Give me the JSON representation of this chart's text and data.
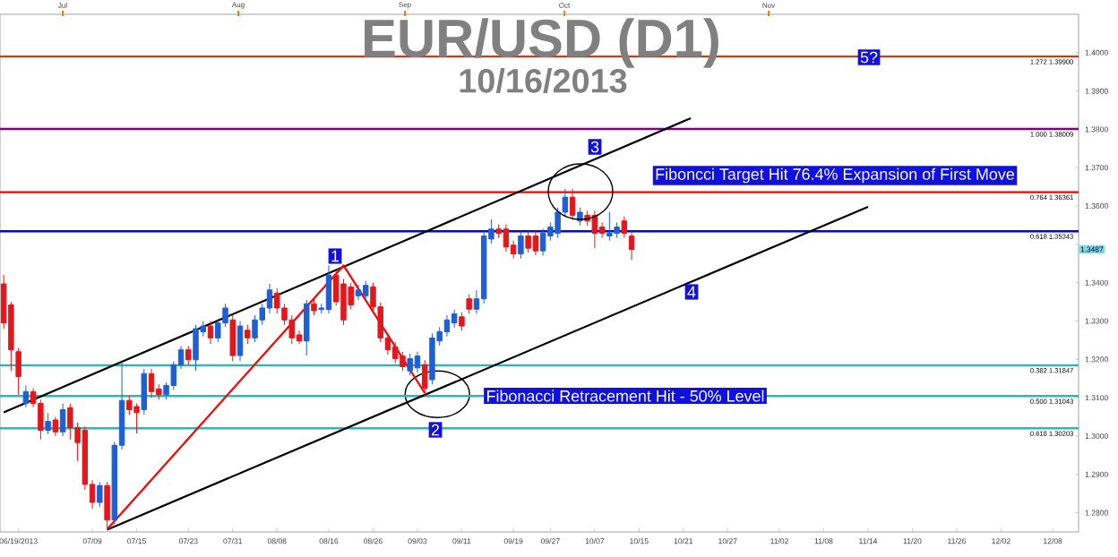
{
  "chart_data": {
    "type": "candlestick",
    "title": "EUR/USD (D1)",
    "subtitle": "10/16/2013",
    "categories": [
      null,
      null,
      "06/19/2013",
      null,
      null,
      null,
      null,
      null,
      null,
      null,
      null,
      null,
      "07/09",
      null,
      null,
      null,
      null,
      null,
      "07/15",
      null,
      null,
      null,
      null,
      null,
      null,
      "07/23",
      null,
      null,
      null,
      null,
      null,
      "07/31",
      null,
      null,
      null,
      null,
      null,
      "08/08",
      null,
      null,
      null,
      null,
      null,
      null,
      "08/16",
      null,
      null,
      null,
      null,
      null,
      "08/26",
      null,
      null,
      null,
      null,
      null,
      "09/03",
      null,
      null,
      null,
      null,
      null,
      "09/11",
      null,
      null,
      null,
      null,
      null,
      null,
      "09/19",
      null,
      null,
      null,
      null,
      "09/27",
      null,
      null,
      null,
      null,
      null,
      "10/07",
      null,
      null,
      null,
      null,
      null,
      "10/15",
      null,
      null,
      null,
      null,
      null,
      "10/21",
      null,
      null,
      null,
      null,
      null,
      "10/27",
      null,
      null,
      null,
      null,
      null,
      null,
      "11/02",
      null,
      null,
      null,
      null,
      null,
      "11/08",
      null,
      null,
      null,
      null,
      null,
      "11/14",
      null,
      null,
      null,
      null,
      null,
      "11/20",
      null,
      null,
      null,
      null,
      null,
      "11/26",
      null,
      null,
      null,
      null,
      null,
      "12/02",
      null,
      null,
      null,
      null,
      null,
      null,
      "12/08",
      null,
      null,
      null
    ],
    "ohlc": [
      [
        1.3397,
        1.342,
        1.328,
        1.3295
      ],
      [
        1.3342,
        1.335,
        1.317,
        1.3225
      ],
      [
        1.322,
        1.323,
        1.3108,
        1.3155
      ],
      [
        1.3085,
        1.3132,
        1.3075,
        1.3116
      ],
      [
        1.3116,
        1.3125,
        1.3075,
        1.3085
      ],
      [
        1.3085,
        1.3095,
        1.2991,
        1.3015
      ],
      [
        1.3015,
        1.306,
        1.3005,
        1.3038
      ],
      [
        1.3042,
        1.305,
        1.3,
        1.3011
      ],
      [
        1.3011,
        1.3085,
        1.3,
        1.3069
      ],
      [
        1.3074,
        1.3085,
        1.2991,
        1.3022
      ],
      [
        1.3022,
        1.3035,
        1.2935,
        1.2983
      ],
      [
        1.3015,
        1.3025,
        1.286,
        1.2874
      ],
      [
        1.2874,
        1.2885,
        1.281,
        1.2827
      ],
      [
        1.2827,
        1.288,
        1.2815,
        1.2871
      ],
      [
        1.2871,
        1.288,
        1.2757,
        1.2781
      ],
      [
        1.2781,
        1.2985,
        1.277,
        1.2976
      ],
      [
        1.2976,
        1.3193,
        1.2965,
        1.3093
      ],
      [
        1.3093,
        1.3105,
        1.3055,
        1.3069
      ],
      [
        1.3077,
        1.3085,
        1.3007,
        1.3061
      ],
      [
        1.3069,
        1.3175,
        1.3055,
        1.3163
      ],
      [
        1.3163,
        1.3175,
        1.31,
        1.3116
      ],
      [
        1.3123,
        1.3135,
        1.3095,
        1.3108
      ],
      [
        1.3108,
        1.314,
        1.3095,
        1.3132
      ],
      [
        1.3132,
        1.3195,
        1.312,
        1.3186
      ],
      [
        1.3186,
        1.3235,
        1.3175,
        1.3225
      ],
      [
        1.3225,
        1.3235,
        1.3185,
        1.3199
      ],
      [
        1.3199,
        1.329,
        1.317,
        1.328
      ],
      [
        1.3272,
        1.33,
        1.326,
        1.3287
      ],
      [
        1.3287,
        1.33,
        1.324,
        1.3256
      ],
      [
        1.3256,
        1.3305,
        1.3245,
        1.3295
      ],
      [
        1.3295,
        1.3345,
        1.3285,
        1.3334
      ],
      [
        1.3303,
        1.3315,
        1.3195,
        1.321
      ],
      [
        1.321,
        1.33,
        1.3195,
        1.3287
      ],
      [
        1.3276,
        1.329,
        1.324,
        1.3256
      ],
      [
        1.3256,
        1.3315,
        1.3245,
        1.3303
      ],
      [
        1.3303,
        1.3345,
        1.329,
        1.3334
      ],
      [
        1.3334,
        1.3397,
        1.332,
        1.3381
      ],
      [
        1.3373,
        1.3385,
        1.332,
        1.3334
      ],
      [
        1.3334,
        1.3345,
        1.329,
        1.3303
      ],
      [
        1.3303,
        1.3315,
        1.324,
        1.3256
      ],
      [
        1.3264,
        1.3275,
        1.324,
        1.3248
      ],
      [
        1.3248,
        1.3355,
        1.321,
        1.3345
      ],
      [
        1.3345,
        1.3358,
        1.3315,
        1.3327
      ],
      [
        1.333,
        1.3345,
        1.332,
        1.3334
      ],
      [
        1.333,
        1.3445,
        1.332,
        1.342
      ],
      [
        1.342,
        1.3432,
        1.334,
        1.335
      ],
      [
        1.3397,
        1.341,
        1.329,
        1.3303
      ],
      [
        1.3389,
        1.34,
        1.333,
        1.3342
      ],
      [
        1.3366,
        1.3395,
        1.3355,
        1.3381
      ],
      [
        1.3366,
        1.3405,
        1.3355,
        1.3393
      ],
      [
        1.3389,
        1.34,
        1.3325,
        1.3337
      ],
      [
        1.3337,
        1.3348,
        1.3245,
        1.3256
      ],
      [
        1.3256,
        1.3268,
        1.3212,
        1.3225
      ],
      [
        1.3233,
        1.3245,
        1.319,
        1.3202
      ],
      [
        1.3209,
        1.322,
        1.317,
        1.3181
      ],
      [
        1.317,
        1.3215,
        1.3158,
        1.3202
      ],
      [
        1.3178,
        1.322,
        1.3166,
        1.3209
      ],
      [
        1.3186,
        1.3198,
        1.3105,
        1.3124
      ],
      [
        1.3147,
        1.3268,
        1.3135,
        1.3256
      ],
      [
        1.3248,
        1.3284,
        1.3236,
        1.3272
      ],
      [
        1.3272,
        1.3315,
        1.326,
        1.3303
      ],
      [
        1.3295,
        1.333,
        1.3283,
        1.3319
      ],
      [
        1.3311,
        1.3323,
        1.3275,
        1.3287
      ],
      [
        1.3358,
        1.337,
        1.3319,
        1.3331
      ],
      [
        1.3331,
        1.338,
        1.3319,
        1.3358
      ],
      [
        1.3358,
        1.3534,
        1.3346,
        1.3522
      ],
      [
        1.3514,
        1.3565,
        1.3502,
        1.354
      ],
      [
        1.354,
        1.3552,
        1.3517,
        1.3529
      ],
      [
        1.354,
        1.3552,
        1.3481,
        1.3493
      ],
      [
        1.3498,
        1.351,
        1.3463,
        1.3475
      ],
      [
        1.3475,
        1.3534,
        1.3463,
        1.3522
      ],
      [
        1.3522,
        1.3534,
        1.3478,
        1.349
      ],
      [
        1.3522,
        1.3534,
        1.3471,
        1.3483
      ],
      [
        1.3483,
        1.3541,
        1.3471,
        1.3529
      ],
      [
        1.3522,
        1.3557,
        1.351,
        1.3545
      ],
      [
        1.3529,
        1.3596,
        1.3517,
        1.3584
      ],
      [
        1.3584,
        1.3645,
        1.3572,
        1.3623
      ],
      [
        1.3623,
        1.3645,
        1.3564,
        1.3576
      ],
      [
        1.3561,
        1.3596,
        1.3549,
        1.3584
      ],
      [
        1.3576,
        1.3588,
        1.3549,
        1.3561
      ],
      [
        1.3576,
        1.3588,
        1.349,
        1.3529
      ],
      [
        1.3545,
        1.3557,
        1.3517,
        1.3529
      ],
      [
        1.3522,
        1.3584,
        1.351,
        1.3529
      ],
      [
        1.3529,
        1.3557,
        1.3517,
        1.3545
      ],
      [
        1.3561,
        1.3573,
        1.3517,
        1.3529
      ],
      [
        1.3522,
        1.3534,
        1.3459,
        1.3487
      ],
      null,
      null,
      null,
      null,
      null,
      null,
      null,
      null,
      null,
      null,
      null,
      null,
      null,
      null,
      null,
      null,
      null,
      null,
      null,
      null,
      null,
      null,
      null,
      null,
      null,
      null,
      null,
      null,
      null,
      null,
      null,
      null,
      null,
      null,
      null,
      null,
      null,
      null,
      null,
      null,
      null,
      null,
      null,
      null,
      null,
      null,
      null,
      null,
      null,
      null,
      null,
      null,
      null,
      null,
      null,
      null,
      null,
      null,
      null,
      null
    ],
    "colors": [
      "#e3171c",
      "#e3171c",
      "#e3171c",
      "#1f5fd6",
      "#e3171c",
      "#e3171c",
      "#1f5fd6",
      "#e3171c",
      "#1f5fd6",
      "#e3171c",
      "#e3171c",
      "#e3171c",
      "#e3171c",
      "#1f5fd6",
      "#e3171c",
      "#1f5fd6",
      "#1f5fd6",
      "#e3171c",
      "#e3171c",
      "#1f5fd6",
      "#e3171c",
      "#e3171c",
      "#1f5fd6",
      "#1f5fd6",
      "#1f5fd6",
      "#e3171c",
      "#1f5fd6",
      "#1f5fd6",
      "#e3171c",
      "#1f5fd6",
      "#1f5fd6",
      "#e3171c",
      "#1f5fd6",
      "#e3171c",
      "#1f5fd6",
      "#1f5fd6",
      "#1f5fd6",
      "#e3171c",
      "#e3171c",
      "#e3171c",
      "#e3171c",
      "#1f5fd6",
      "#e3171c",
      "#1f5fd6",
      "#1f5fd6",
      "#e3171c",
      "#e3171c",
      "#e3171c",
      "#1f5fd6",
      "#1f5fd6",
      "#e3171c",
      "#e3171c",
      "#e3171c",
      "#e3171c",
      "#e3171c",
      "#1f5fd6",
      "#1f5fd6",
      "#e3171c",
      "#1f5fd6",
      "#1f5fd6",
      "#1f5fd6",
      "#1f5fd6",
      "#e3171c",
      "#e3171c",
      "#1f5fd6",
      "#1f5fd6",
      "#1f5fd6",
      "#e3171c",
      "#e3171c",
      "#e3171c",
      "#1f5fd6",
      "#e3171c",
      "#e3171c",
      "#1f5fd6",
      "#1f5fd6",
      "#1f5fd6",
      "#1f5fd6",
      "#e3171c",
      "#1f5fd6",
      "#e3171c",
      "#e3171c",
      "#e3171c",
      "#1f5fd6",
      "#1f5fd6",
      "#e3171c",
      "#e3171c",
      null,
      null,
      null,
      null,
      null,
      null,
      null,
      null,
      null,
      null,
      null,
      null,
      null,
      null,
      null,
      null,
      null,
      null,
      null,
      null,
      null,
      null,
      null,
      null,
      null,
      null,
      null,
      null,
      null,
      null,
      null,
      null,
      null,
      null,
      null,
      null,
      null,
      null,
      null,
      null,
      null,
      null,
      null,
      null,
      null,
      null,
      null,
      null,
      null,
      null,
      null,
      null,
      null,
      null,
      null,
      null,
      null,
      null,
      null,
      null
    ],
    "series": [
      {
        "type": "line",
        "color": "#000000",
        "values": [
          1.3062,
          null,
          null,
          null,
          null,
          null,
          null,
          null,
          null,
          null,
          null,
          null,
          null,
          null,
          null,
          null,
          null,
          null,
          null,
          null,
          null,
          null,
          null,
          null,
          null,
          null,
          null,
          null,
          null,
          null,
          null,
          null,
          null,
          null,
          null,
          null,
          null,
          null,
          null,
          null,
          null,
          null,
          null,
          null,
          null,
          null,
          null,
          null,
          null,
          null,
          null,
          null,
          null,
          null,
          null,
          null,
          null,
          null,
          null,
          null,
          null,
          null,
          null,
          null,
          null,
          null,
          null,
          null,
          null,
          null,
          null,
          null,
          null,
          null,
          null,
          null,
          null,
          null,
          null,
          null,
          null,
          null,
          null,
          null,
          null,
          null,
          null,
          null,
          null,
          null,
          null,
          null,
          null,
          1.3829,
          null,
          null,
          null,
          null,
          null,
          null,
          null,
          null,
          null,
          null,
          null,
          null,
          null,
          null,
          null,
          null,
          null,
          null,
          null,
          null,
          null,
          null,
          null,
          null,
          null,
          null,
          null,
          null,
          null,
          null,
          null,
          null,
          null,
          null,
          null,
          null,
          null,
          null,
          null,
          null,
          null,
          null,
          null,
          null,
          null,
          null,
          null,
          null,
          null,
          null,
          null,
          null
        ]
      },
      {
        "type": "line",
        "color": "#000000",
        "values": [
          null,
          null,
          null,
          null,
          null,
          null,
          null,
          null,
          null,
          null,
          null,
          null,
          null,
          null,
          1.2756,
          null,
          null,
          null,
          null,
          null,
          null,
          null,
          null,
          null,
          null,
          null,
          null,
          null,
          null,
          null,
          null,
          null,
          null,
          null,
          null,
          null,
          null,
          null,
          null,
          null,
          null,
          null,
          null,
          null,
          null,
          null,
          null,
          null,
          null,
          null,
          null,
          null,
          null,
          null,
          null,
          null,
          null,
          null,
          null,
          null,
          null,
          null,
          null,
          null,
          null,
          null,
          null,
          null,
          null,
          null,
          null,
          null,
          null,
          null,
          null,
          null,
          null,
          null,
          null,
          null,
          null,
          null,
          null,
          null,
          null,
          null,
          null,
          null,
          null,
          null,
          null,
          null,
          null,
          null,
          null,
          null,
          null,
          null,
          null,
          null,
          null,
          null,
          null,
          null,
          null,
          null,
          null,
          null,
          null,
          null,
          null,
          null,
          null,
          null,
          null,
          null,
          null,
          1.3598,
          null,
          null,
          null,
          null,
          null,
          null,
          null,
          null,
          null,
          null,
          null,
          null,
          null,
          null,
          null,
          null,
          null,
          null,
          null,
          null,
          null,
          null,
          null,
          null,
          null,
          null,
          null,
          null
        ]
      },
      {
        "type": "line",
        "color": "#ff0000",
        "values": [
          null,
          null,
          null,
          null,
          null,
          null,
          null,
          null,
          null,
          null,
          null,
          null,
          null,
          null,
          1.2757,
          null,
          null,
          null,
          null,
          null,
          null,
          null,
          null,
          null,
          null,
          null,
          null,
          null,
          null,
          null,
          null,
          null,
          null,
          null,
          null,
          null,
          null,
          null,
          null,
          null,
          null,
          null,
          null,
          null,
          null,
          null,
          1.3445,
          null,
          null,
          null,
          null,
          null,
          null,
          null,
          null,
          null,
          null,
          1.3112,
          null,
          null,
          null,
          null,
          null,
          null,
          null,
          null,
          null,
          null,
          null,
          null,
          null,
          null,
          null,
          null,
          null,
          null,
          null,
          null,
          null,
          null,
          null,
          null,
          null,
          null,
          null,
          null,
          null,
          null,
          null,
          null,
          null,
          null,
          null,
          null,
          null,
          null,
          null,
          null,
          null,
          null,
          null,
          null,
          null,
          null,
          null,
          null,
          null,
          null,
          null,
          null,
          null,
          null,
          null,
          null,
          null,
          null,
          null,
          null,
          null,
          null,
          null,
          null,
          null,
          null,
          null,
          null,
          null,
          null,
          null,
          null,
          null,
          null,
          null,
          null,
          null,
          null,
          null,
          null,
          null,
          null,
          null,
          null,
          null,
          null,
          null,
          null
        ]
      }
    ],
    "ylim": [
      1.275,
      1.41
    ],
    "yticks": [
      {
        "value": 1.28,
        "label": "1.2800"
      },
      {
        "value": 1.29,
        "label": "1.2900"
      },
      {
        "value": 1.3,
        "label": "1.3000"
      },
      {
        "value": 1.31,
        "label": "1.3100"
      },
      {
        "value": 1.32,
        "label": "1.3200"
      },
      {
        "value": 1.33,
        "label": "1.3300"
      },
      {
        "value": 1.34,
        "label": "1.3400"
      },
      {
        "value": 1.35,
        "label": null
      },
      {
        "value": 1.36,
        "label": "1.3600"
      },
      {
        "value": 1.37,
        "label": "1.3700"
      },
      {
        "value": 1.38,
        "label": "1.3800"
      },
      {
        "value": 1.39,
        "label": "1.3900"
      },
      {
        "value": 1.4,
        "label": "1.4000"
      }
    ],
    "ref_lines": [
      {
        "axis": "y",
        "value": 1.399,
        "label": "1.272 1.39900",
        "color": "#b5451b"
      },
      {
        "axis": "y",
        "value": 1.38009,
        "label": "1.000 1.38009",
        "color": "#800080"
      },
      {
        "axis": "y",
        "value": 1.36361,
        "label": "0.764 1.36361",
        "color": "#ff0000"
      },
      {
        "axis": "y",
        "value": 1.35343,
        "label": "0.618 1.35343",
        "color": "#0000ff"
      },
      {
        "axis": "y",
        "value": 1.31847,
        "label": "0.382 1.31847",
        "color": "#2ab7b7"
      },
      {
        "axis": "y",
        "value": 1.31043,
        "label": "0.500 1.31043",
        "color": "#2ab7b7"
      },
      {
        "axis": "y",
        "value": 1.30203,
        "label": "0.618 1.30203",
        "color": "#2ab7b7"
      }
    ],
    "annotations": [
      "1",
      "2",
      "3",
      "4",
      "5?",
      "Fibonacci Retracement Hit - 50% Level",
      "Fiboncci Target Hit 76.4% Expansion of First Move",
      {
        "text": "1.3487",
        "y": 1.3487
      },
      "Jul",
      "Aug",
      "Sep",
      "Oct",
      "Nov"
    ]
  }
}
